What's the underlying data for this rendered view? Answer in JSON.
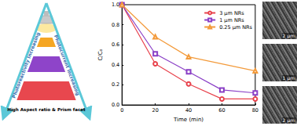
{
  "diagram": {
    "left_label": "Photoreactivity Increasing",
    "right_label": "Photocurrent Increasing",
    "bottom_label": "High Aspect ratio & Prism facet"
  },
  "images": {
    "scale_bars": [
      "2 μm",
      "1 μm",
      "2 μm"
    ]
  },
  "chart_data": {
    "type": "line",
    "x_label": "Time (min)",
    "y_label": "C/C₀",
    "series": [
      {
        "name": "3 μm NRs",
        "color": "#e8424c",
        "marker": "circle",
        "x": [
          0,
          20,
          40,
          60,
          80
        ],
        "values": [
          1.0,
          0.41,
          0.21,
          0.06,
          0.06
        ]
      },
      {
        "name": "1 μm NRs",
        "color": "#8a3fc6",
        "marker": "square",
        "x": [
          0,
          20,
          40,
          60,
          80
        ],
        "values": [
          1.0,
          0.51,
          0.33,
          0.15,
          0.12
        ]
      },
      {
        "name": "0.25 μm NRs",
        "color": "#f39a3a",
        "marker": "triangle",
        "x": [
          0,
          20,
          40,
          80
        ],
        "values": [
          1.0,
          0.68,
          0.48,
          0.34
        ]
      }
    ],
    "xlim": [
      0,
      80
    ],
    "xticks": [
      0,
      20,
      40,
      60,
      80
    ],
    "ylim": [
      0,
      1.0
    ],
    "yticks": [
      {
        "value": 0,
        "label": "0.0"
      },
      {
        "value": 0.2,
        "label": "0.2"
      },
      {
        "value": 0.4,
        "label": "0.4"
      },
      {
        "value": 0.6,
        "label": "0.6"
      },
      {
        "value": 0.8,
        "label": "0.8"
      },
      {
        "value": 1.0,
        "label": "1.0"
      }
    ],
    "legend": "upper right",
    "grid": false
  }
}
